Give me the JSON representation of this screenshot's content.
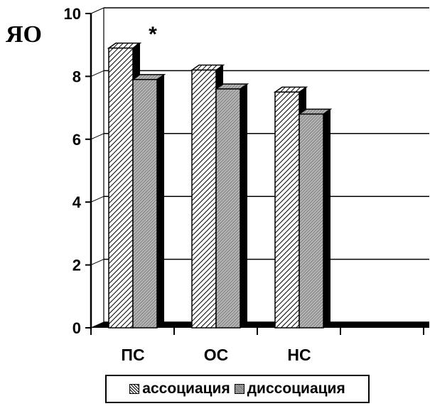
{
  "chart_data": {
    "type": "bar",
    "categories": [
      "ПС",
      "ОС",
      "НС",
      ""
    ],
    "series": [
      {
        "name": "ассоциация",
        "values": [
          8.9,
          8.2,
          7.5,
          0
        ]
      },
      {
        "name": "диссоциация",
        "values": [
          7.9,
          7.6,
          6.8,
          0
        ]
      }
    ],
    "ylabel": "ЯО",
    "ylim": [
      0,
      10
    ],
    "yticks": [
      "0",
      "2",
      "4",
      "6",
      "8",
      "10"
    ],
    "annotation": "*",
    "grid": true,
    "legend_position": "bottom",
    "colors": {
      "series1": "hatched",
      "series2": "#aaaaaa",
      "shadow": "#000000"
    }
  }
}
